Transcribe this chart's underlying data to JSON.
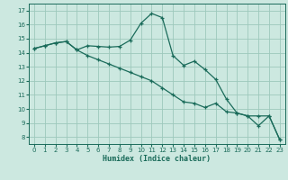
{
  "xlabel": "Humidex (Indice chaleur)",
  "bg_color": "#cce8e0",
  "grid_color": "#9dc8bc",
  "line_color": "#1a6b5a",
  "xlim": [
    -0.5,
    23.5
  ],
  "ylim": [
    7.5,
    17.5
  ],
  "xticks": [
    0,
    1,
    2,
    3,
    4,
    5,
    6,
    7,
    8,
    9,
    10,
    11,
    12,
    13,
    14,
    15,
    16,
    17,
    18,
    19,
    20,
    21,
    22,
    23
  ],
  "yticks": [
    8,
    9,
    10,
    11,
    12,
    13,
    14,
    15,
    16,
    17
  ],
  "series1_x": [
    0,
    1,
    2,
    3,
    4,
    5,
    6,
    7,
    8,
    9,
    10,
    11,
    12,
    13,
    14,
    15,
    16,
    17,
    18,
    19,
    20,
    21,
    22,
    23
  ],
  "series1_y": [
    14.3,
    14.5,
    14.7,
    14.8,
    14.2,
    14.5,
    14.45,
    14.4,
    14.45,
    14.9,
    16.1,
    16.8,
    16.5,
    13.8,
    13.1,
    13.4,
    12.8,
    12.1,
    10.7,
    9.7,
    9.5,
    9.5,
    9.5,
    7.8
  ],
  "series2_x": [
    0,
    1,
    2,
    3,
    4,
    5,
    6,
    7,
    8,
    9,
    10,
    11,
    12,
    13,
    14,
    15,
    16,
    17,
    18,
    19,
    20,
    21,
    22,
    23
  ],
  "series2_y": [
    14.3,
    14.5,
    14.7,
    14.8,
    14.2,
    13.8,
    13.5,
    13.2,
    12.9,
    12.6,
    12.3,
    12.0,
    11.5,
    11.0,
    10.5,
    10.4,
    10.1,
    10.4,
    9.8,
    9.7,
    9.5,
    8.8,
    9.5,
    7.8
  ]
}
